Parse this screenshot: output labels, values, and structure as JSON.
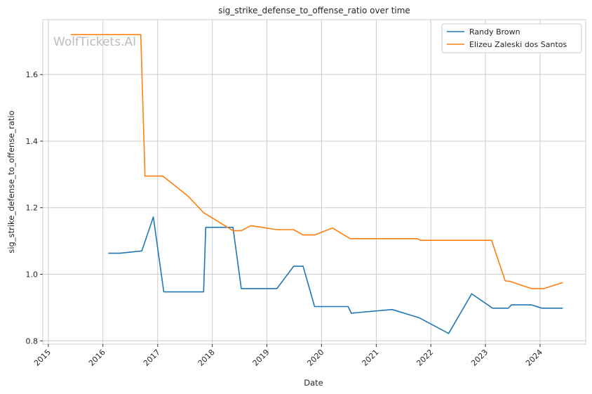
{
  "chart_data": {
    "type": "line",
    "title": "sig_strike_defense_to_offense_ratio over time",
    "xlabel": "Date",
    "ylabel": "sig_strike_defense_to_offense_ratio",
    "watermark": "WolfTickets.AI",
    "xlim": [
      "2014-11-25",
      "2024-11-01"
    ],
    "ylim": [
      0.79,
      1.765
    ],
    "x_ticks": [
      {
        "date": "2015-01-01",
        "label": "2015"
      },
      {
        "date": "2016-01-01",
        "label": "2016"
      },
      {
        "date": "2017-01-01",
        "label": "2017"
      },
      {
        "date": "2018-01-01",
        "label": "2018"
      },
      {
        "date": "2019-01-01",
        "label": "2019"
      },
      {
        "date": "2020-01-01",
        "label": "2020"
      },
      {
        "date": "2021-01-01",
        "label": "2021"
      },
      {
        "date": "2022-01-01",
        "label": "2022"
      },
      {
        "date": "2023-01-01",
        "label": "2023"
      },
      {
        "date": "2024-01-01",
        "label": "2024"
      }
    ],
    "y_ticks": [
      {
        "value": 0.8,
        "label": "0.8"
      },
      {
        "value": 1.0,
        "label": "1.0"
      },
      {
        "value": 1.2,
        "label": "1.2"
      },
      {
        "value": 1.4,
        "label": "1.4"
      },
      {
        "value": 1.6,
        "label": "1.6"
      }
    ],
    "grid": true,
    "legend_position": "top-right",
    "series": [
      {
        "name": "Randy Brown",
        "color": "#1f77b4",
        "points": [
          [
            "2016-02-06",
            1.063
          ],
          [
            "2016-04-23",
            1.063
          ],
          [
            "2016-09-17",
            1.07
          ],
          [
            "2016-12-03",
            1.172
          ],
          [
            "2017-02-11",
            0.947
          ],
          [
            "2017-11-04",
            0.947
          ],
          [
            "2017-11-18",
            1.141
          ],
          [
            "2018-05-19",
            1.141
          ],
          [
            "2018-07-14",
            0.957
          ],
          [
            "2019-03-09",
            0.957
          ],
          [
            "2019-06-29",
            1.024
          ],
          [
            "2019-08-31",
            1.024
          ],
          [
            "2019-11-16",
            0.903
          ],
          [
            "2020-06-27",
            0.903
          ],
          [
            "2020-07-18",
            0.883
          ],
          [
            "2021-04-17",
            0.894
          ],
          [
            "2021-09-25",
            0.872
          ],
          [
            "2021-10-16",
            0.869
          ],
          [
            "2022-04-30",
            0.822
          ],
          [
            "2022-10-01",
            0.941
          ],
          [
            "2023-02-18",
            0.898
          ],
          [
            "2023-06-03",
            0.898
          ],
          [
            "2023-06-24",
            0.908
          ],
          [
            "2023-11-04",
            0.908
          ],
          [
            "2024-01-13",
            0.898
          ],
          [
            "2024-06-01",
            0.898
          ]
        ]
      },
      {
        "name": "Elizeu Zaleski dos Santos",
        "color": "#ff7f0e",
        "points": [
          [
            "2015-05-30",
            1.72
          ],
          [
            "2016-09-10",
            1.72
          ],
          [
            "2016-10-08",
            1.295
          ],
          [
            "2017-02-04",
            1.295
          ],
          [
            "2017-07-22",
            1.235
          ],
          [
            "2017-11-04",
            1.185
          ],
          [
            "2018-05-19",
            1.131
          ],
          [
            "2018-07-14",
            1.131
          ],
          [
            "2018-09-15",
            1.146
          ],
          [
            "2019-03-09",
            1.134
          ],
          [
            "2019-06-29",
            1.134
          ],
          [
            "2019-08-31",
            1.118
          ],
          [
            "2019-11-16",
            1.118
          ],
          [
            "2020-03-14",
            1.139
          ],
          [
            "2020-07-11",
            1.107
          ],
          [
            "2021-10-02",
            1.107
          ],
          [
            "2021-10-23",
            1.102
          ],
          [
            "2023-02-11",
            1.102
          ],
          [
            "2023-05-13",
            0.98
          ],
          [
            "2023-06-10",
            0.979
          ],
          [
            "2023-11-04",
            0.957
          ],
          [
            "2024-01-27",
            0.957
          ],
          [
            "2024-06-01",
            0.975
          ]
        ]
      }
    ]
  }
}
